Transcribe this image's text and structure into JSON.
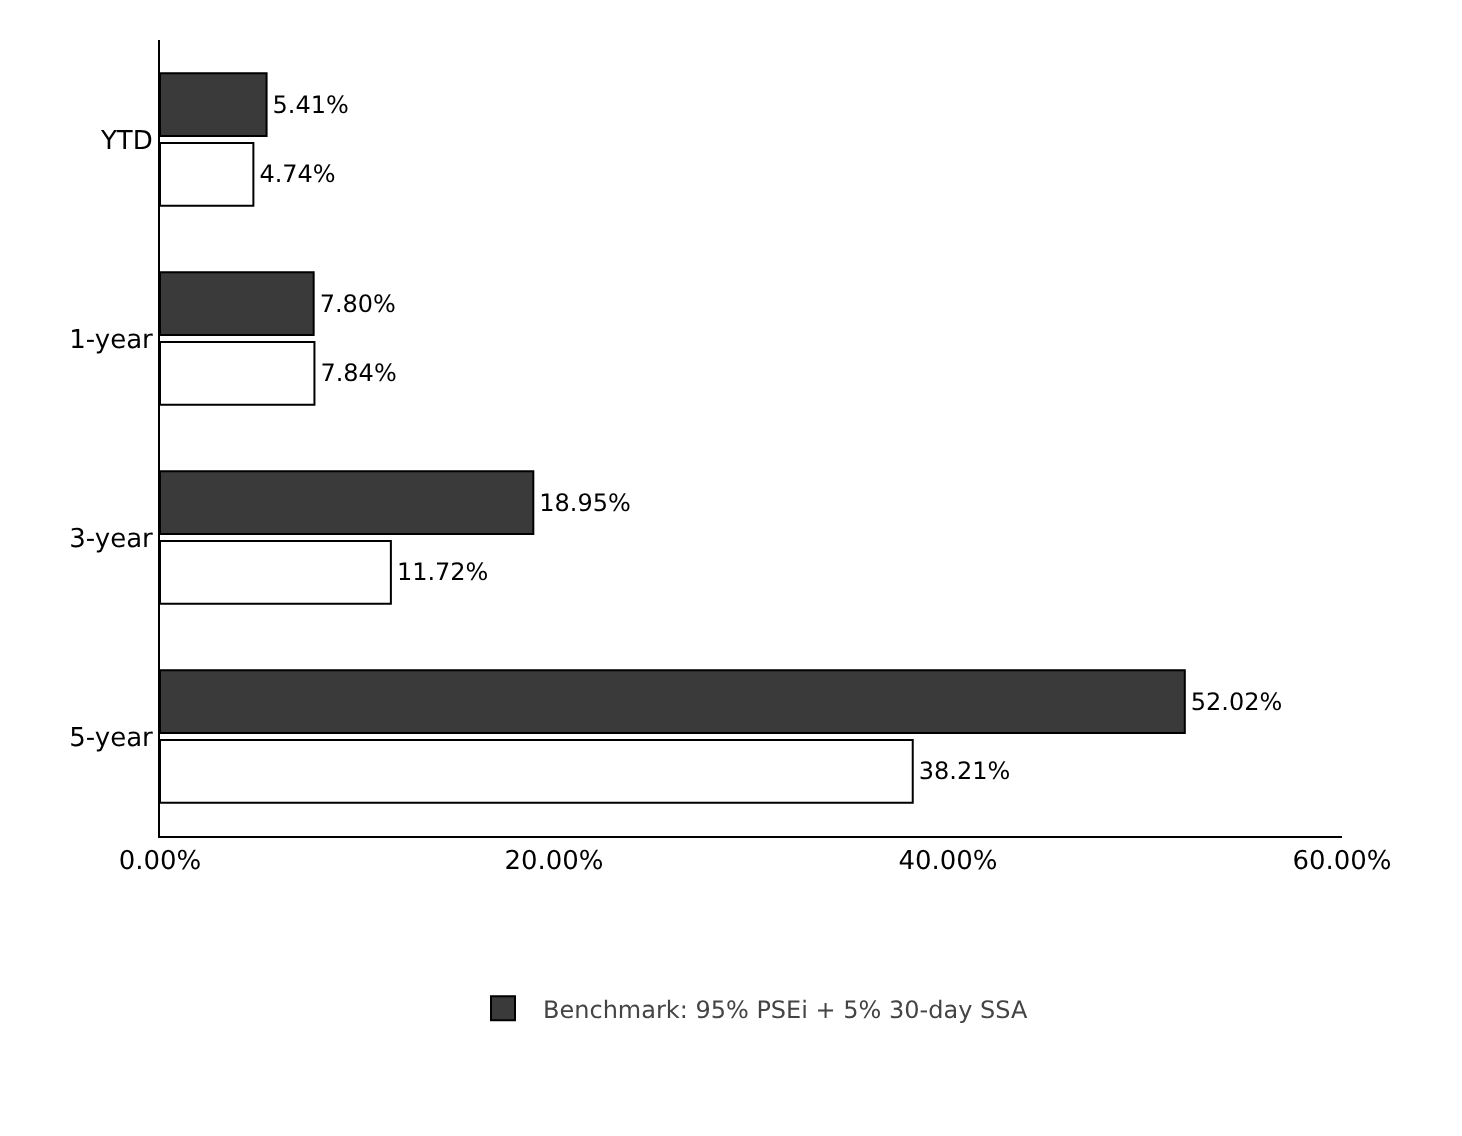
{
  "chart_data": {
    "type": "bar",
    "orientation": "horizontal",
    "categories": [
      "YTD",
      "1-year",
      "3-year",
      "5-year"
    ],
    "series": [
      {
        "name": "Benchmark: 95% PSEi + 5% 30-day SSA",
        "color": "#3a3a3a",
        "values": [
          5.41,
          7.8,
          18.95,
          52.02
        ],
        "value_labels": [
          "5.41%",
          "7.80%",
          "18.95%",
          "52.02%"
        ]
      },
      {
        "color": "#ffffff",
        "values": [
          4.74,
          7.84,
          11.72,
          38.21
        ],
        "value_labels": [
          "4.74%",
          "7.84%",
          "11.72%",
          "38.21%"
        ]
      }
    ],
    "xlim": [
      0,
      60
    ],
    "xticks": [
      {
        "value": 0,
        "label": "0.00%"
      },
      {
        "value": 20,
        "label": "20.00%"
      },
      {
        "value": 40,
        "label": "40.00%"
      },
      {
        "value": 60,
        "label": "60.00%"
      }
    ],
    "grid": false,
    "legend": "bottom"
  }
}
